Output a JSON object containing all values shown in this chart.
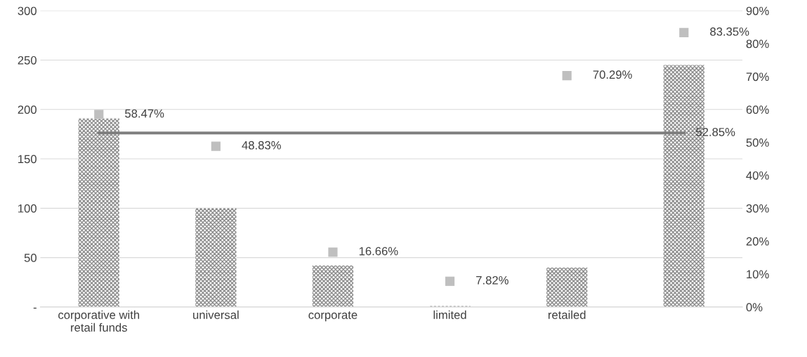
{
  "chart_data": {
    "type": "bar",
    "categories": [
      "corporative with\nretail funds",
      "universal",
      "corporate",
      "limited",
      "retailed",
      null
    ],
    "series": [
      {
        "color": "#8c8c8c",
        "values": [
          191,
          100,
          42,
          1,
          40,
          245
        ]
      },
      {
        "type": "scatter",
        "axis": "y2",
        "color": "#bfbfbf",
        "marker": "square",
        "values": [
          58.47,
          48.83,
          16.66,
          7.82,
          70.29,
          83.35
        ],
        "value_labels": [
          "58.47%",
          "48.83%",
          "16.66%",
          "7.82%",
          "70.29%",
          "83.35%"
        ]
      },
      {
        "type": "line",
        "axis": "y2",
        "color": "#7f7f7f",
        "values": [
          52.85,
          52.85,
          52.85,
          52.85,
          52.85,
          52.85
        ],
        "value_labels": [
          null,
          null,
          null,
          null,
          null,
          "52.85%"
        ]
      }
    ],
    "ylim": [
      0,
      300
    ],
    "yticks": [
      {
        "value": 0,
        "label": "-"
      },
      50,
      100,
      150,
      200,
      250,
      300
    ],
    "y2lim": [
      0,
      90
    ],
    "y2ticks": [
      {
        "value": 0,
        "label": "0%"
      },
      {
        "value": 10,
        "label": "10%"
      },
      {
        "value": 20,
        "label": "20%"
      },
      {
        "value": 30,
        "label": "30%"
      },
      {
        "value": 40,
        "label": "40%"
      },
      {
        "value": 50,
        "label": "50%"
      },
      {
        "value": 60,
        "label": "60%"
      },
      {
        "value": 70,
        "label": "70%"
      },
      {
        "value": 80,
        "label": "80%"
      },
      {
        "value": 90,
        "label": "90%"
      }
    ],
    "grid": "y"
  }
}
